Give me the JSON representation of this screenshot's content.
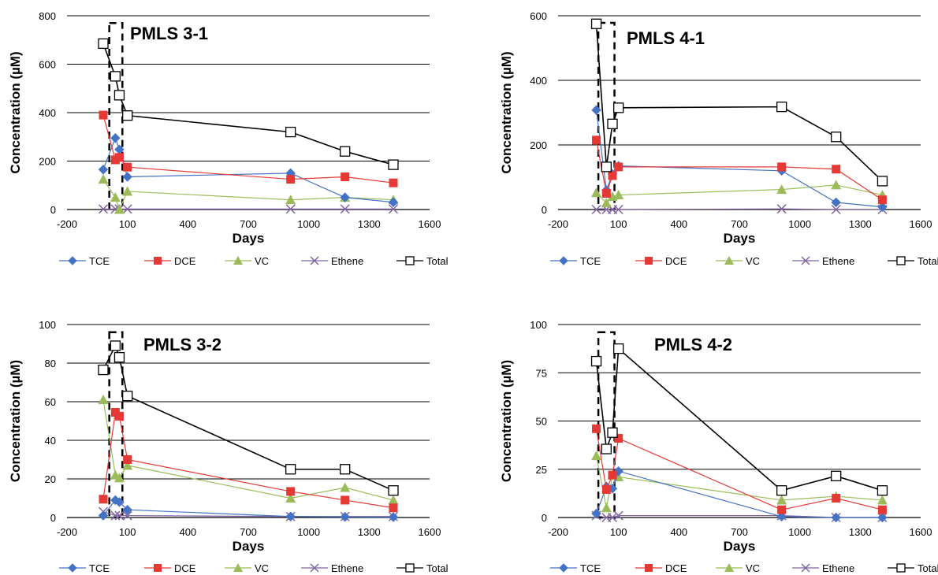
{
  "colors": {
    "TCE": "#4472C4",
    "DCE": "#E53935",
    "VC": "#9BBB59",
    "Ethene": "#8064A2",
    "Total": "#000000",
    "grid": "#000000"
  },
  "icons": {
    "TCE": "diamond",
    "DCE": "square",
    "VC": "triangle",
    "Ethene": "x-mark",
    "Total": "open-square"
  },
  "chart_data": [
    {
      "type": "line",
      "title": "PMLS 3-1",
      "xlabel": "Days",
      "ylabel": "Concentration (µM)",
      "xlim": [
        -200,
        1600
      ],
      "xticks": [
        -200,
        100,
        400,
        700,
        1000,
        1300,
        1600
      ],
      "ylim": [
        0,
        800
      ],
      "yticks": [
        0,
        200,
        400,
        600,
        800
      ],
      "dashed_box": {
        "x": [
          10,
          75
        ],
        "y": [
          0,
          770
        ]
      },
      "series": [
        {
          "name": "TCE",
          "x": [
            -20,
            40,
            60,
            100,
            910,
            1180,
            1420
          ],
          "y": [
            165,
            295,
            248,
            135,
            150,
            50,
            30
          ]
        },
        {
          "name": "DCE",
          "x": [
            -20,
            40,
            60,
            100,
            910,
            1180,
            1420
          ],
          "y": [
            390,
            205,
            215,
            175,
            125,
            135,
            110
          ]
        },
        {
          "name": "VC",
          "x": [
            -20,
            40,
            60,
            100,
            910,
            1180,
            1420
          ],
          "y": [
            125,
            50,
            0,
            75,
            40,
            50,
            40
          ]
        },
        {
          "name": "Ethene",
          "x": [
            -20,
            40,
            60,
            100,
            910,
            1180,
            1420
          ],
          "y": [
            2,
            2,
            2,
            2,
            2,
            2,
            2
          ]
        },
        {
          "name": "Total",
          "x": [
            -20,
            40,
            60,
            100,
            910,
            1180,
            1420
          ],
          "y": [
            685,
            550,
            472,
            388,
            320,
            240,
            185
          ]
        }
      ]
    },
    {
      "type": "line",
      "title": "PMLS 4-1",
      "xlabel": "Days",
      "ylabel": "Concentration (µM)",
      "xlim": [
        -200,
        1600
      ],
      "xticks": [
        -200,
        100,
        400,
        700,
        1000,
        1300,
        1600
      ],
      "ylim": [
        0,
        600
      ],
      "yticks": [
        0,
        200,
        400,
        600
      ],
      "dashed_box": {
        "x": [
          0,
          80
        ],
        "y": [
          0,
          578
        ]
      },
      "series": [
        {
          "name": "TCE",
          "x": [
            -10,
            40,
            70,
            100,
            910,
            1180,
            1410
          ],
          "y": [
            308,
            60,
            110,
            135,
            120,
            22,
            8
          ]
        },
        {
          "name": "DCE",
          "x": [
            -10,
            40,
            70,
            100,
            910,
            1180,
            1410
          ],
          "y": [
            215,
            50,
            105,
            132,
            132,
            125,
            30
          ]
        },
        {
          "name": "VC",
          "x": [
            -10,
            40,
            70,
            100,
            910,
            1180,
            1410
          ],
          "y": [
            52,
            20,
            40,
            45,
            62,
            76,
            45
          ]
        },
        {
          "name": "Ethene",
          "x": [
            -10,
            40,
            70,
            100,
            910,
            1180,
            1410
          ],
          "y": [
            0,
            0,
            0,
            0,
            2,
            0,
            0
          ]
        },
        {
          "name": "Total",
          "x": [
            -10,
            40,
            70,
            100,
            910,
            1180,
            1410
          ],
          "y": [
            575,
            132,
            265,
            315,
            318,
            225,
            88
          ]
        }
      ]
    },
    {
      "type": "line",
      "title": "PMLS 3-2",
      "xlabel": "Days",
      "ylabel": "Concentration (µM)",
      "xlim": [
        -200,
        1600
      ],
      "xticks": [
        -200,
        100,
        400,
        700,
        1000,
        1300,
        1600
      ],
      "ylim": [
        0,
        100
      ],
      "yticks": [
        0,
        20,
        40,
        60,
        80,
        100
      ],
      "dashed_box": {
        "x": [
          10,
          75
        ],
        "y": [
          0,
          96
        ]
      },
      "series": [
        {
          "name": "TCE",
          "x": [
            -20,
            40,
            60,
            100,
            910,
            1180,
            1420
          ],
          "y": [
            1,
            9,
            8,
            4,
            0.5,
            0.3,
            0.2
          ]
        },
        {
          "name": "DCE",
          "x": [
            -20,
            40,
            60,
            100,
            910,
            1180,
            1420
          ],
          "y": [
            9.5,
            54.5,
            52.5,
            30,
            13.5,
            9,
            5
          ]
        },
        {
          "name": "VC",
          "x": [
            -20,
            40,
            60,
            100,
            910,
            1180,
            1420
          ],
          "y": [
            61,
            22,
            20.5,
            27,
            10,
            15.5,
            9
          ]
        },
        {
          "name": "Ethene",
          "x": [
            -20,
            40,
            60,
            100,
            910,
            1180,
            1420
          ],
          "y": [
            3,
            1,
            1,
            1,
            0.5,
            0.5,
            0.5
          ]
        },
        {
          "name": "Total",
          "x": [
            -20,
            40,
            60,
            100,
            910,
            1180,
            1420
          ],
          "y": [
            76.5,
            89,
            83,
            63,
            25,
            25,
            14
          ]
        }
      ]
    },
    {
      "type": "line",
      "title": "PMLS 4-2",
      "xlabel": "Days",
      "ylabel": "Concentration (µM)",
      "xlim": [
        -200,
        1600
      ],
      "xticks": [
        -200,
        100,
        400,
        700,
        1000,
        1300,
        1600
      ],
      "ylim": [
        0,
        100
      ],
      "yticks": [
        0,
        25,
        50,
        75,
        100
      ],
      "dashed_box": {
        "x": [
          0,
          80
        ],
        "y": [
          0,
          96
        ]
      },
      "series": [
        {
          "name": "TCE",
          "x": [
            -10,
            40,
            70,
            100,
            910,
            1180,
            1410
          ],
          "y": [
            2,
            16,
            15,
            24,
            0.5,
            0,
            0
          ]
        },
        {
          "name": "DCE",
          "x": [
            -10,
            40,
            70,
            100,
            910,
            1180,
            1410
          ],
          "y": [
            46,
            14.5,
            22,
            41,
            4,
            10,
            4
          ]
        },
        {
          "name": "VC",
          "x": [
            -10,
            40,
            70,
            100,
            910,
            1180,
            1410
          ],
          "y": [
            32,
            5,
            22,
            21,
            9,
            11,
            9
          ]
        },
        {
          "name": "Ethene",
          "x": [
            -10,
            40,
            70,
            100,
            910,
            1180,
            1410
          ],
          "y": [
            1,
            0,
            0,
            1,
            1,
            0,
            0
          ]
        },
        {
          "name": "Total",
          "x": [
            -10,
            40,
            70,
            100,
            910,
            1180,
            1410
          ],
          "y": [
            81,
            35.5,
            44,
            87.5,
            14,
            21.5,
            14
          ]
        }
      ]
    }
  ]
}
